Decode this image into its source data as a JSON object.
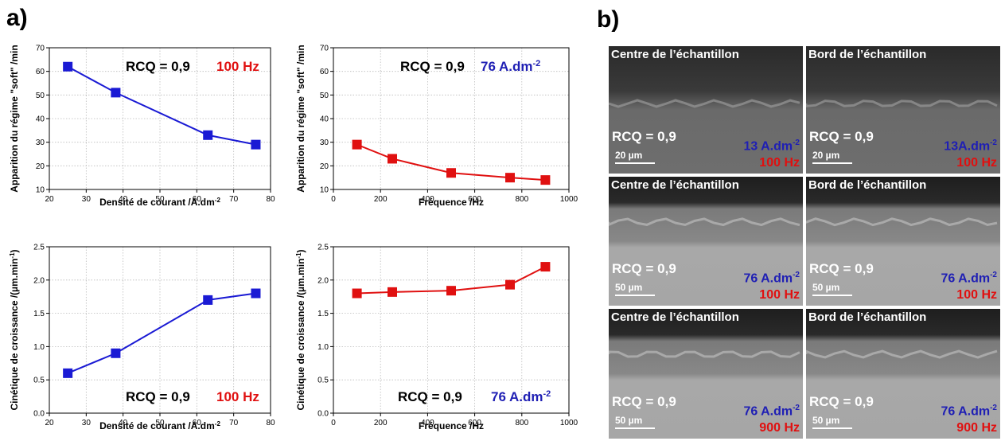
{
  "panel_a": "a)",
  "panel_b": "b)",
  "chart_data": [
    {
      "type": "line",
      "x": [
        25,
        38,
        63,
        76
      ],
      "y": [
        62,
        51,
        33,
        29
      ],
      "xlabel": "Densité de courant /A.dm",
      "xlabel_sup": "-2",
      "ylabel": "Apparition du régime \"soft\" /min",
      "xlim": [
        20,
        80
      ],
      "ylim": [
        10,
        70
      ],
      "xticks": [
        20,
        30,
        40,
        50,
        60,
        70,
        80
      ],
      "yticks": [
        10,
        20,
        30,
        40,
        50,
        60,
        70
      ],
      "annotation_rcq": "RCQ = 0,9",
      "annotation_cond": "100 Hz",
      "annotation_cond_sup": "",
      "color": "#1a1ad4",
      "cond_color": "#e01010"
    },
    {
      "type": "line",
      "x": [
        100,
        250,
        500,
        750,
        900
      ],
      "y": [
        29,
        23,
        17,
        15,
        14
      ],
      "xlabel": "Fréquence /Hz",
      "xlabel_sup": "",
      "ylabel": "Apparition du régime \"soft\" /min",
      "xlim": [
        0,
        1000
      ],
      "ylim": [
        10,
        70
      ],
      "xticks": [
        0,
        200,
        400,
        600,
        800,
        1000
      ],
      "yticks": [
        10,
        20,
        30,
        40,
        50,
        60,
        70
      ],
      "annotation_rcq": "RCQ = 0,9",
      "annotation_cond": "76 A.dm",
      "annotation_cond_sup": "-2",
      "color": "#e01010",
      "cond_color": "#1f1fb4"
    },
    {
      "type": "line",
      "x": [
        25,
        38,
        63,
        76
      ],
      "y": [
        0.6,
        0.9,
        1.7,
        1.8
      ],
      "xlabel": "Densité de courant /A.dm",
      "xlabel_sup": "-2",
      "ylabel": "Cinétique de croissance /(µm.min",
      "ylabel_sup": "-1",
      "ylabel_tail": ")",
      "xlim": [
        20,
        80
      ],
      "ylim": [
        0.0,
        2.5
      ],
      "xticks": [
        20,
        30,
        40,
        50,
        60,
        70,
        80
      ],
      "yticks": [
        "0.0",
        "0.5",
        "1.0",
        "1.5",
        "2.0",
        "2.5"
      ],
      "annotation_rcq": "RCQ = 0,9",
      "annotation_cond": "100 Hz",
      "annotation_cond_sup": "",
      "color": "#1a1ad4",
      "cond_color": "#e01010"
    },
    {
      "type": "line",
      "x": [
        100,
        250,
        500,
        750,
        900
      ],
      "y": [
        1.8,
        1.82,
        1.84,
        1.93,
        2.2
      ],
      "xlabel": "Fréquence /Hz",
      "xlabel_sup": "",
      "ylabel": "Cinétique de croissance /(µm.min",
      "ylabel_sup": "-1",
      "ylabel_tail": ")",
      "xlim": [
        0,
        1000
      ],
      "ylim": [
        0.0,
        2.5
      ],
      "xticks": [
        0,
        200,
        400,
        600,
        800,
        1000
      ],
      "yticks": [
        "0.0",
        "0.5",
        "1.0",
        "1.5",
        "2.0",
        "2.5"
      ],
      "annotation_rcq": "RCQ = 0,9",
      "annotation_cond": "76 A.dm",
      "annotation_cond_sup": "-2",
      "color": "#e01010",
      "cond_color": "#1f1fb4"
    }
  ],
  "micrographs": [
    {
      "caption": "Centre de l’échantillon",
      "rcq": "RCQ = 0,9",
      "dens": "13 A.dm",
      "dens_sup": "-2",
      "freq": "100 Hz",
      "scale": "20 µm",
      "style": "dark"
    },
    {
      "caption": "Bord de l’échantillon",
      "rcq": "RCQ = 0,9",
      "dens": "13A.dm",
      "dens_sup": "-2",
      "freq": "100 Hz",
      "scale": "20 µm",
      "style": "dark"
    },
    {
      "caption": "Centre de l’échantillon",
      "rcq": "RCQ = 0,9",
      "dens": "76 A.dm",
      "dens_sup": "-2",
      "freq": "100 Hz",
      "scale": "50 µm",
      "style": "mid"
    },
    {
      "caption": "Bord de l’échantillon",
      "rcq": "RCQ = 0,9",
      "dens": "76 A.dm",
      "dens_sup": "-2",
      "freq": "100 Hz",
      "scale": "50 µm",
      "style": "mid"
    },
    {
      "caption": "Centre de l’échantillon",
      "rcq": "RCQ = 0,9",
      "dens": "76 A.dm",
      "dens_sup": "-2",
      "freq": "900 Hz",
      "scale": "50 µm",
      "style": "mid"
    },
    {
      "caption": "Bord de l’échantillon",
      "rcq": "RCQ = 0,9",
      "dens": "76 A.dm",
      "dens_sup": "-2",
      "freq": "900 Hz",
      "scale": "50 µm",
      "style": "mid"
    }
  ]
}
